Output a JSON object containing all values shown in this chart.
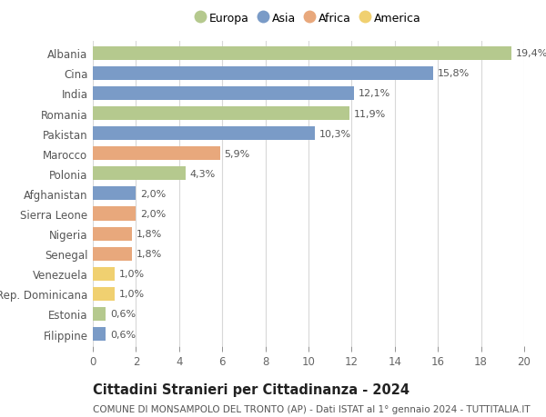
{
  "categories": [
    "Albania",
    "Cina",
    "India",
    "Romania",
    "Pakistan",
    "Marocco",
    "Polonia",
    "Afghanistan",
    "Sierra Leone",
    "Nigeria",
    "Senegal",
    "Venezuela",
    "Rep. Dominicana",
    "Estonia",
    "Filippine"
  ],
  "values": [
    19.4,
    15.8,
    12.1,
    11.9,
    10.3,
    5.9,
    4.3,
    2.0,
    2.0,
    1.8,
    1.8,
    1.0,
    1.0,
    0.6,
    0.6
  ],
  "labels": [
    "19,4%",
    "15,8%",
    "12,1%",
    "11,9%",
    "10,3%",
    "5,9%",
    "4,3%",
    "2,0%",
    "2,0%",
    "1,8%",
    "1,8%",
    "1,0%",
    "1,0%",
    "0,6%",
    "0,6%"
  ],
  "continents": [
    "Europa",
    "Asia",
    "Asia",
    "Europa",
    "Asia",
    "Africa",
    "Europa",
    "Asia",
    "Africa",
    "Africa",
    "Africa",
    "America",
    "America",
    "Europa",
    "Asia"
  ],
  "colors": {
    "Europa": "#b5c98e",
    "Asia": "#7a9bc7",
    "Africa": "#e8a87c",
    "America": "#f0d070"
  },
  "legend_order": [
    "Europa",
    "Asia",
    "Africa",
    "America"
  ],
  "title": "Cittadini Stranieri per Cittadinanza - 2024",
  "subtitle": "COMUNE DI MONSAMPOLO DEL TRONTO (AP) - Dati ISTAT al 1° gennaio 2024 - TUTTITALIA.IT",
  "xlim": [
    0,
    20
  ],
  "xticks": [
    0,
    2,
    4,
    6,
    8,
    10,
    12,
    14,
    16,
    18,
    20
  ],
  "background_color": "#ffffff",
  "grid_color": "#d8d8d8",
  "bar_height": 0.68,
  "label_fontsize": 8,
  "tick_fontsize": 8.5,
  "ytick_fontsize": 8.5,
  "title_fontsize": 10.5,
  "subtitle_fontsize": 7.5,
  "legend_fontsize": 9
}
